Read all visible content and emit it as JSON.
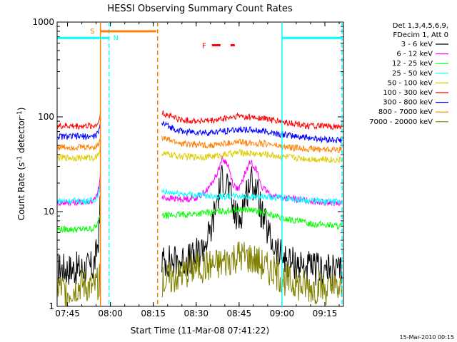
{
  "chart_data": {
    "type": "line",
    "title": "HESSI Observing Summary Count Rates",
    "xlabel": "Start Time (11-Mar-08 07:41:22)",
    "ylabel_main": "Count Rate (s",
    "ylabel_sup1": "-1",
    "ylabel_mid": " detector",
    "ylabel_sup2": "-1",
    "ylabel_end": ")",
    "ylim": [
      1,
      1000
    ],
    "yscale": "log",
    "xlim": [
      "07:41:22",
      "09:21:30"
    ],
    "x_ticks": [
      "07:45",
      "08:00",
      "08:15",
      "08:30",
      "08:45",
      "09:00",
      "09:15"
    ],
    "y_ticks": [
      "1",
      "10",
      "100",
      "1000"
    ],
    "legend_header": [
      "Det 1,3,4,5,6,9,",
      "FDecim 1, Att 0"
    ],
    "series": [
      {
        "name": "3 - 6 keV",
        "color": "#000000",
        "segments": [
          {
            "x": [
              "07:41:30",
              "07:50",
              "07:54",
              "07:55",
              "07:56",
              "07:56:30"
            ],
            "y": [
              2.5,
              2.5,
              2.6,
              3.5,
              6,
              15
            ]
          },
          {
            "x": [
              "08:18",
              "08:25",
              "08:29",
              "08:32",
              "08:35",
              "08:37",
              "08:39",
              "08:41",
              "08:43",
              "08:45",
              "08:47",
              "08:49",
              "08:51",
              "08:53",
              "08:56",
              "08:59",
              "09:02",
              "09:10",
              "09:21"
            ],
            "y": [
              3,
              3,
              3.2,
              4,
              6,
              12,
              22,
              20,
              10,
              8,
              14,
              21,
              18,
              9,
              5,
              3.5,
              3,
              2.5,
              2.3
            ]
          }
        ]
      },
      {
        "name": "6 - 12 keV",
        "color": "#ff00ff",
        "segments": [
          {
            "x": [
              "07:41:30",
              "07:48",
              "07:52",
              "07:54",
              "07:55",
              "07:56",
              "07:56:30"
            ],
            "y": [
              12.5,
              12.5,
              12.8,
              13,
              14,
              18,
              25
            ]
          },
          {
            "x": [
              "08:18",
              "08:25",
              "08:30",
              "08:34",
              "08:37",
              "08:39",
              "08:41",
              "08:43",
              "08:45",
              "08:47",
              "08:49",
              "08:51",
              "08:53",
              "08:56",
              "09:00",
              "09:10",
              "09:21"
            ],
            "y": [
              14,
              13.5,
              14,
              17,
              24,
              36,
              32,
              19,
              17,
              25,
              34,
              28,
              18,
              15,
              14,
              13,
              12
            ]
          }
        ]
      },
      {
        "name": "12 - 25 keV",
        "color": "#00ff00",
        "segments": [
          {
            "x": [
              "07:41:30",
              "07:50",
              "07:54",
              "07:55",
              "07:56",
              "07:56:30"
            ],
            "y": [
              6.5,
              6.5,
              6.6,
              7,
              8,
              10
            ]
          },
          {
            "x": [
              "08:18",
              "08:30",
              "08:38",
              "08:44",
              "08:48",
              "08:55",
              "09:00",
              "09:10",
              "09:21"
            ],
            "y": [
              9,
              9.5,
              10,
              10.5,
              10.5,
              9.5,
              8.5,
              7.5,
              7
            ]
          }
        ]
      },
      {
        "name": "25 - 50 keV",
        "color": "#00ffff",
        "segments": [
          {
            "x": [
              "07:41:30",
              "07:50",
              "07:54",
              "07:55",
              "07:56",
              "07:56:30"
            ],
            "y": [
              13,
              13,
              13,
              14,
              16,
              20
            ]
          },
          {
            "x": [
              "08:18",
              "08:30",
              "08:40",
              "08:48",
              "08:55",
              "09:00",
              "09:10",
              "09:21"
            ],
            "y": [
              16,
              15,
              14.5,
              14.5,
              14,
              14,
              13,
              12.5
            ]
          }
        ]
      },
      {
        "name": "50 - 100 keV",
        "color": "#ddcc00",
        "segments": [
          {
            "x": [
              "07:41:30",
              "07:50",
              "07:54",
              "07:55",
              "07:56",
              "07:56:30"
            ],
            "y": [
              37,
              37,
              37,
              38,
              42,
              50
            ]
          },
          {
            "x": [
              "08:18",
              "08:25",
              "08:35",
              "08:45",
              "08:55",
              "09:00",
              "09:10",
              "09:21"
            ],
            "y": [
              41,
              38,
              38,
              42,
              40,
              38,
              36,
              35
            ]
          }
        ]
      },
      {
        "name": "100 - 300 keV",
        "color": "#ff0000",
        "segments": [
          {
            "x": [
              "07:41:30",
              "07:50",
              "07:54",
              "07:55",
              "07:56",
              "07:56:30"
            ],
            "y": [
              80,
              80,
              80,
              82,
              90,
              115
            ]
          },
          {
            "x": [
              "08:18",
              "08:25",
              "08:35",
              "08:45",
              "08:55",
              "09:00",
              "09:10",
              "09:21"
            ],
            "y": [
              110,
              92,
              90,
              102,
              95,
              88,
              80,
              78
            ]
          }
        ]
      },
      {
        "name": "300 - 800 keV",
        "color": "#0000ff",
        "segments": [
          {
            "x": [
              "07:41:30",
              "07:50",
              "07:54",
              "07:55",
              "07:56",
              "07:56:30"
            ],
            "y": [
              62,
              62,
              62,
              64,
              70,
              85
            ]
          },
          {
            "x": [
              "08:18",
              "08:25",
              "08:35",
              "08:45",
              "08:55",
              "09:00",
              "09:10",
              "09:21"
            ],
            "y": [
              85,
              70,
              68,
              74,
              70,
              65,
              60,
              56
            ]
          }
        ]
      },
      {
        "name": "800 - 7000 keV",
        "color": "#ff8000",
        "segments": [
          {
            "x": [
              "07:41:30",
              "07:50",
              "07:54",
              "07:55",
              "07:56",
              "07:56:30"
            ],
            "y": [
              48,
              48,
              48,
              49,
              52,
              60
            ]
          },
          {
            "x": [
              "08:18",
              "08:25",
              "08:35",
              "08:45",
              "08:55",
              "09:00",
              "09:10",
              "09:21"
            ],
            "y": [
              60,
              52,
              50,
              54,
              52,
              48,
              46,
              45
            ]
          }
        ]
      },
      {
        "name": "7000 - 20000 keV",
        "color": "#808000",
        "segments": [
          {
            "x": [
              "07:41:30",
              "07:45",
              "07:50",
              "07:54",
              "07:56",
              "07:56:30"
            ],
            "y": [
              1.6,
              1.4,
              1.7,
              1.5,
              1.8,
              2
            ]
          },
          {
            "x": [
              "08:18",
              "08:25",
              "08:30",
              "08:38",
              "08:45",
              "08:50",
              "08:55",
              "09:00",
              "09:05",
              "09:10",
              "09:21"
            ],
            "y": [
              1.8,
              2.2,
              2.6,
              2.8,
              3.5,
              3.2,
              2.5,
              2,
              1.7,
              1.6,
              1.5
            ]
          }
        ]
      }
    ],
    "flags": {
      "S": {
        "label": "S",
        "color": "#ff8000",
        "x": [
          "07:56:30",
          "08:16:00"
        ],
        "y": 800
      },
      "N": {
        "label": "N",
        "color": "#00ffff",
        "segments": [
          [
            "07:41:30",
            "07:59:30"
          ],
          [
            "09:00:00",
            "09:21:00"
          ]
        ],
        "y": 680
      },
      "F": {
        "label": "F",
        "color": "#ff0000",
        "segments": [
          [
            "08:35:30",
            "08:38:30"
          ],
          [
            "08:42:00",
            "08:43:30"
          ]
        ],
        "y": 570
      }
    },
    "verticals": [
      {
        "x": "07:56:30",
        "color": "#ff8000",
        "dashed": false
      },
      {
        "x": "07:59:30",
        "color": "#00ffff",
        "dashed": true
      },
      {
        "x": "08:16:30",
        "color": "#ff8000",
        "dashed": true
      },
      {
        "x": "09:00:00",
        "color": "#00ffff",
        "dashed": false
      },
      {
        "x": "09:21:00",
        "color": "#00ffff",
        "dashed": true
      }
    ],
    "footer_date": "15-Mar-2010 00:15"
  }
}
